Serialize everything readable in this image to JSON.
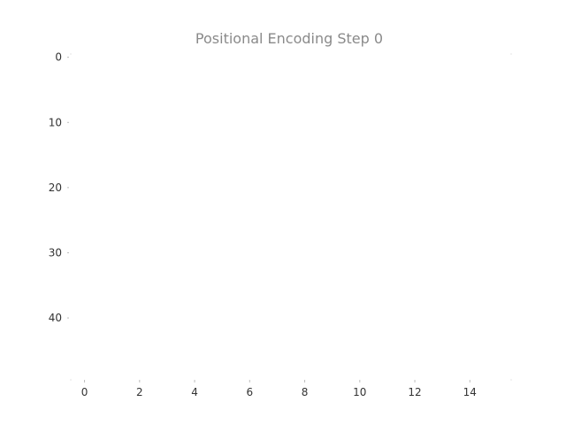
{
  "chart_data": {
    "type": "heatmap",
    "title": "Positional Encoding Step 0",
    "xlabel": "",
    "ylabel": "",
    "x_ticks": [
      0,
      2,
      4,
      6,
      8,
      10,
      12,
      14
    ],
    "y_ticks": [
      0,
      10,
      20,
      30,
      40
    ],
    "xlim": [
      -0.5,
      15.5
    ],
    "ylim": [
      49.5,
      -0.5
    ],
    "grid": false,
    "values": [],
    "colors": {
      "title": "#8a8a8a",
      "tick_label": "#333333",
      "tick_mark": "#bdbdbd",
      "background": "#ffffff"
    }
  }
}
